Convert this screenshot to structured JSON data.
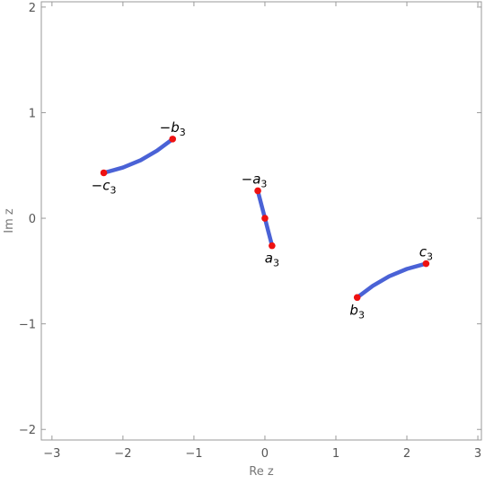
{
  "chart_data": {
    "type": "line",
    "xlabel": "Re z",
    "ylabel": "Im z",
    "xlim": [
      -3.15,
      3.05
    ],
    "ylim": [
      -2.1,
      2.05
    ],
    "xticks": [
      -3,
      -2,
      -1,
      0,
      1,
      2,
      3
    ],
    "yticks": [
      -2,
      -1,
      0,
      1,
      2
    ],
    "xtick_labels": [
      "−3",
      "−2",
      "−1",
      "0",
      "1",
      "2",
      "3"
    ],
    "ytick_labels": [
      "−2",
      "−1",
      "0",
      "1",
      "2"
    ],
    "line_color": "#4a62d6",
    "point_color": "#ee1111",
    "series": [
      {
        "points": [
          [
            -2.27,
            0.43
          ],
          [
            -2.0,
            0.48
          ],
          [
            -1.75,
            0.55
          ],
          [
            -1.52,
            0.64
          ],
          [
            -1.3,
            0.75
          ]
        ]
      },
      {
        "points": [
          [
            -0.1,
            0.26
          ],
          [
            -0.05,
            0.13
          ],
          [
            0.0,
            0.0
          ],
          [
            0.05,
            -0.13
          ],
          [
            0.1,
            -0.26
          ]
        ]
      },
      {
        "points": [
          [
            1.3,
            -0.75
          ],
          [
            1.52,
            -0.64
          ],
          [
            1.75,
            -0.55
          ],
          [
            2.0,
            -0.48
          ],
          [
            2.27,
            -0.43
          ]
        ]
      }
    ],
    "points": [
      {
        "x": -2.27,
        "y": 0.43,
        "label": "−c",
        "sub": "3",
        "anchor": "below"
      },
      {
        "x": -1.3,
        "y": 0.75,
        "label": "−b",
        "sub": "3",
        "anchor": "above"
      },
      {
        "x": -0.1,
        "y": 0.26,
        "label": "−a",
        "sub": "3",
        "anchor": "above-left"
      },
      {
        "x": 0.0,
        "y": 0.0,
        "label": "",
        "sub": "",
        "anchor": "none"
      },
      {
        "x": 0.1,
        "y": -0.26,
        "label": "a",
        "sub": "3",
        "anchor": "below"
      },
      {
        "x": 1.3,
        "y": -0.75,
        "label": "b",
        "sub": "3",
        "anchor": "below"
      },
      {
        "x": 2.27,
        "y": -0.43,
        "label": "c",
        "sub": "3",
        "anchor": "above"
      }
    ]
  }
}
